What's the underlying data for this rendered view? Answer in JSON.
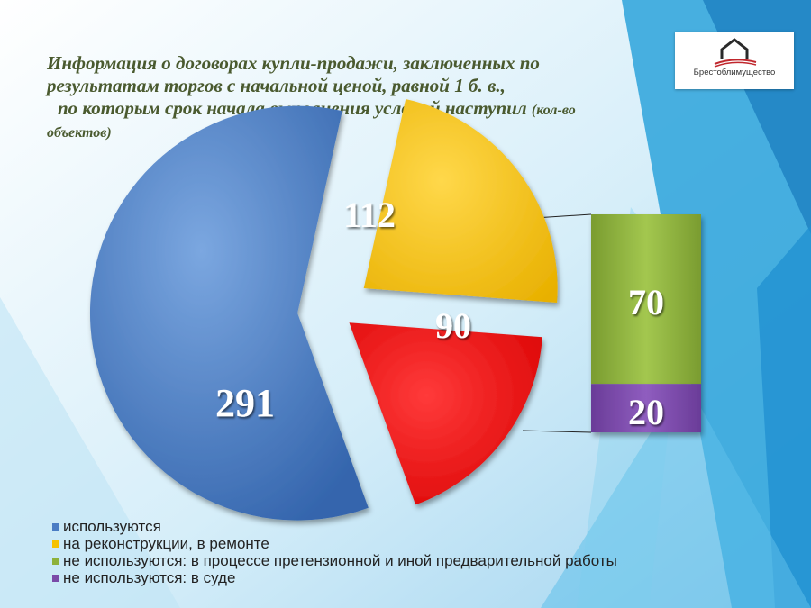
{
  "title": {
    "line1": "Информация о договорах купли-продажи, заключенных по",
    "line2": "результатам торгов с начальной ценой, равной 1 б. в.,",
    "line3": "по которым срок начала выполнения условий наступил",
    "line3_suffix": "(кол-во",
    "line4": "объектов)"
  },
  "logo": {
    "text": "Брестоблимущество"
  },
  "colors": {
    "blue": "#4a7cc4",
    "yellow": "#f5c200",
    "red": "#f10000",
    "green": "#8db13b",
    "purple": "#7a4aa8",
    "title": "#4a5a2f"
  },
  "chart_data": {
    "type": "pie",
    "slices": [
      {
        "label": "используются",
        "value": 291,
        "color": "#4a7cc4"
      },
      {
        "label": "на реконструкции, в ремонте",
        "value": 112,
        "color": "#f5c200"
      },
      {
        "label": "не используются",
        "value": 90,
        "color": "#f10000"
      }
    ],
    "breakdown": {
      "of": "не используются",
      "type": "stacked-bar",
      "segments": [
        {
          "label": "не используются: в процессе претензионной и иной предварительной работы",
          "value": 70,
          "color": "#8db13b"
        },
        {
          "label": "не используются: в суде",
          "value": 20,
          "color": "#7a4aa8"
        }
      ]
    },
    "legend_position": "bottom-left"
  },
  "legend": [
    {
      "label": "используются",
      "color": "#4a7cc4"
    },
    {
      "label": "на реконструкции, в ремонте",
      "color": "#f5c200"
    },
    {
      "label": "не используются: в процессе претензионной и иной предварительной работы",
      "color": "#8db13b"
    },
    {
      "label": "не используются: в суде",
      "color": "#7a4aa8"
    }
  ]
}
